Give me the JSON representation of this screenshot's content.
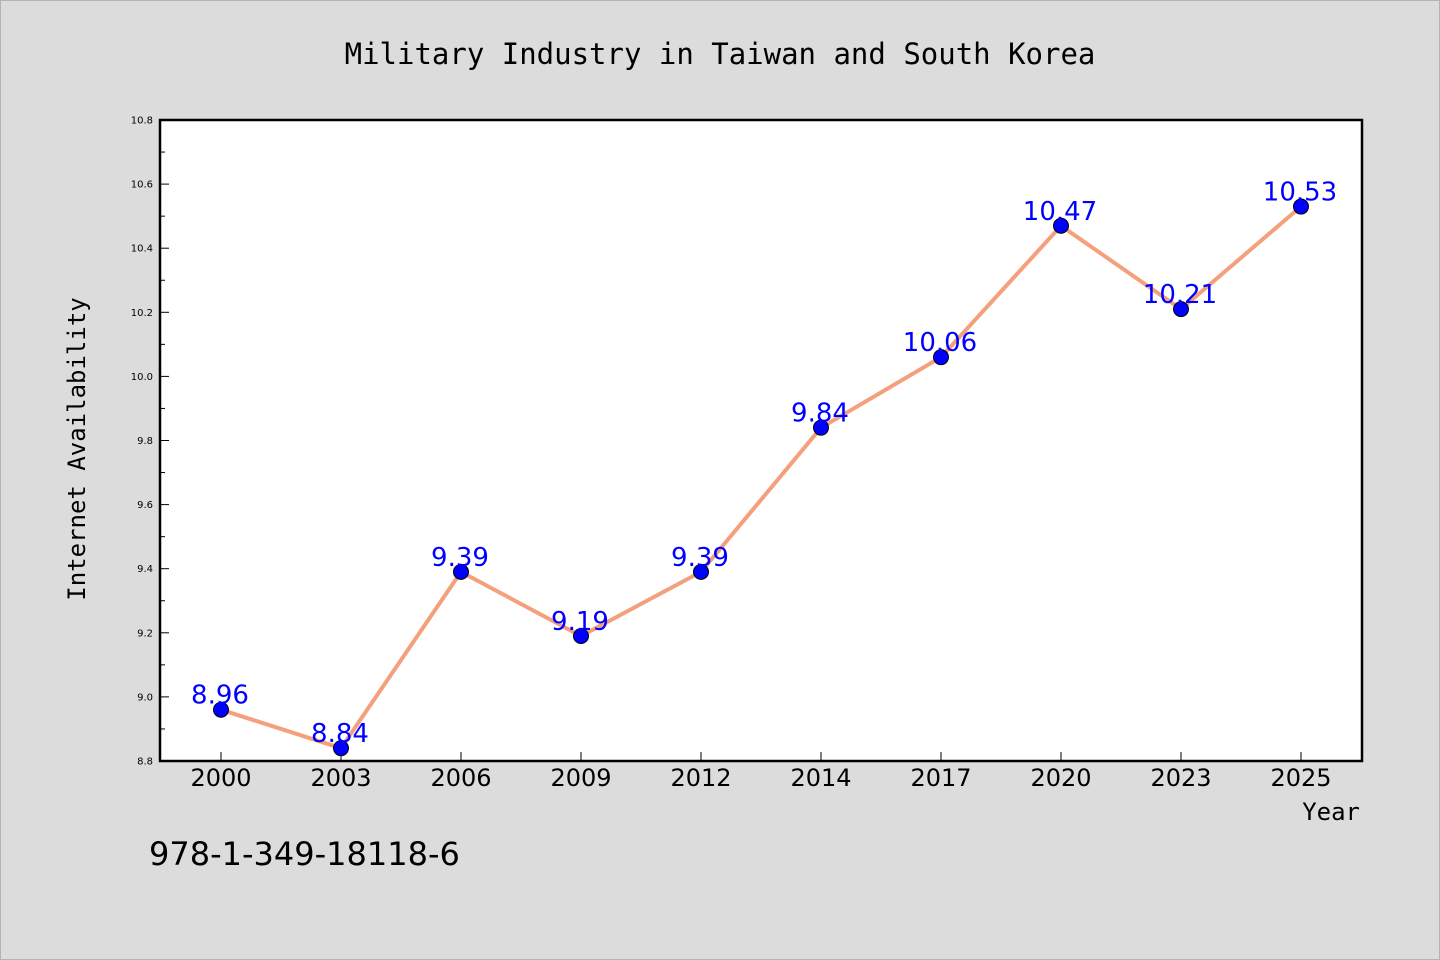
{
  "chart_data": {
    "type": "line",
    "title": "Military Industry in Taiwan and South Korea",
    "xlabel": "Year",
    "ylabel": "Internet Availability",
    "categories": [
      "2000",
      "2003",
      "2006",
      "2009",
      "2012",
      "2014",
      "2017",
      "2020",
      "2023",
      "2025"
    ],
    "series": [
      {
        "values": [
          8.96,
          8.84,
          9.39,
          9.19,
          9.39,
          9.84,
          10.06,
          10.47,
          10.21,
          10.53
        ],
        "labels": [
          "8.96",
          "8.84",
          "9.39",
          "9.19",
          "9.39",
          "9.84",
          "10.06",
          "10.47",
          "10.21",
          "10.53"
        ],
        "line_color": "#f4a07c",
        "marker_color": "#0000ff"
      }
    ],
    "ylim": [
      8.8,
      10.8
    ],
    "yticks": [
      "8.8",
      "9.0",
      "9.2",
      "9.4",
      "9.6",
      "9.8",
      "10.0",
      "10.2",
      "10.4",
      "10.6",
      "10.8"
    ],
    "grid": false,
    "legend": "none"
  },
  "footer": {
    "code": "978-1-349-18118-6"
  },
  "colors": {
    "background": "#dcdcdc",
    "plot_background": "#ffffff",
    "line": "#f4a07c",
    "marker": "#0000ff",
    "data_label": "#0000ff"
  }
}
